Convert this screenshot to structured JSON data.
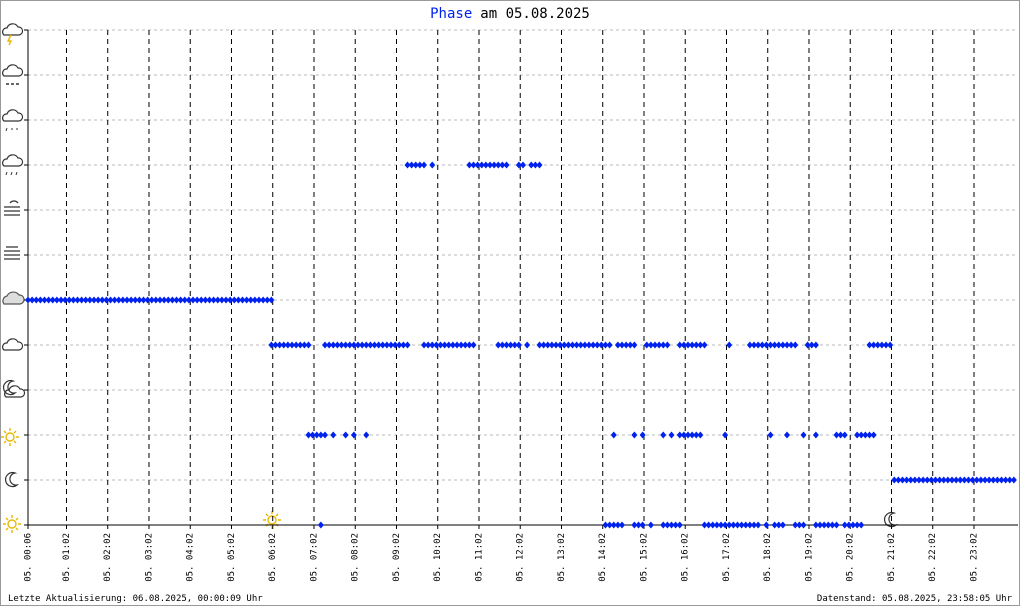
{
  "chart_data": {
    "type": "scatter",
    "title_highlight": "Phase",
    "title": "am 05.08.2025",
    "footer_left": "Letzte Aktualisierung: 06.08.2025, 00:00:09 Uhr",
    "footer_right": "Datenstand: 05.08.2025, 23:58:05 Uhr",
    "color": "#0022ee",
    "grid": true,
    "xlim": [
      0.1,
      24.1
    ],
    "ylim": [
      0,
      11
    ],
    "yticks": [
      0,
      1,
      2,
      3,
      4,
      5,
      6,
      7,
      8,
      9,
      10,
      11
    ],
    "xticks": [
      {
        "value": 0.1,
        "label": "05. 00:06"
      },
      {
        "value": 1.033,
        "label": "05. 01:02"
      },
      {
        "value": 2.033,
        "label": "05. 02:02"
      },
      {
        "value": 3.033,
        "label": "05. 03:02"
      },
      {
        "value": 4.033,
        "label": "05. 04:02"
      },
      {
        "value": 5.033,
        "label": "05. 05:02"
      },
      {
        "value": 6.033,
        "label": "05. 06:02"
      },
      {
        "value": 7.033,
        "label": "05. 07:02"
      },
      {
        "value": 8.033,
        "label": "05. 08:02"
      },
      {
        "value": 9.033,
        "label": "05. 09:02"
      },
      {
        "value": 10.033,
        "label": "05. 10:02"
      },
      {
        "value": 11.033,
        "label": "05. 11:02"
      },
      {
        "value": 12.033,
        "label": "05. 12:02"
      },
      {
        "value": 13.033,
        "label": "05. 13:02"
      },
      {
        "value": 14.033,
        "label": "05. 14:02"
      },
      {
        "value": 15.033,
        "label": "05. 15:02"
      },
      {
        "value": 16.033,
        "label": "05. 16:02"
      },
      {
        "value": 17.033,
        "label": "05. 17:02"
      },
      {
        "value": 18.033,
        "label": "05. 18:02"
      },
      {
        "value": 19.033,
        "label": "05. 19:02"
      },
      {
        "value": 20.033,
        "label": "05. 20:02"
      },
      {
        "value": 21.033,
        "label": "05. 21:02"
      },
      {
        "value": 22.033,
        "label": "05. 22:02"
      },
      {
        "value": 23.033,
        "label": "05. 23:02"
      }
    ],
    "series": [
      {
        "y": 5,
        "x": [
          0.1,
          0.2,
          0.3,
          0.4,
          0.5,
          0.6,
          0.7,
          0.8,
          0.9,
          1.0,
          1.1,
          1.2,
          1.3,
          1.4,
          1.5,
          1.6,
          1.7,
          1.8,
          1.9,
          2.0,
          2.1,
          2.2,
          2.3,
          2.4,
          2.5,
          2.6,
          2.7,
          2.8,
          2.9,
          3.0,
          3.1,
          3.2,
          3.3,
          3.4,
          3.5,
          3.6,
          3.7,
          3.8,
          3.9,
          4.0,
          4.1,
          4.2,
          4.3,
          4.4,
          4.5,
          4.6,
          4.7,
          4.8,
          4.9,
          5.0,
          5.1,
          5.2,
          5.3,
          5.4,
          5.5,
          5.6,
          5.7,
          5.8,
          5.9,
          6.0
        ]
      },
      {
        "y": 4,
        "x": [
          6.0,
          6.1,
          6.2,
          6.3,
          6.4,
          6.5,
          6.6,
          6.7,
          6.8,
          6.9,
          7.3,
          7.4,
          7.5,
          7.6,
          7.7,
          7.8,
          7.9,
          8.0,
          8.1,
          8.2,
          8.3,
          8.4,
          8.5,
          8.6,
          8.7,
          8.8,
          8.9,
          9.0,
          9.1,
          9.2,
          9.3,
          9.7,
          9.8,
          9.9,
          10.0,
          10.1,
          10.2,
          10.3,
          10.4,
          10.5,
          10.6,
          10.7,
          10.8,
          10.9,
          11.5,
          11.6,
          11.7,
          11.8,
          11.9,
          12.0,
          12.2,
          12.5,
          12.6,
          12.7,
          12.8,
          12.9,
          13.0,
          13.1,
          13.2,
          13.3,
          13.4,
          13.5,
          13.6,
          13.7,
          13.8,
          13.9,
          14.0,
          14.1,
          14.2,
          14.4,
          14.5,
          14.6,
          14.7,
          14.8,
          15.1,
          15.2,
          15.3,
          15.4,
          15.5,
          15.6,
          15.9,
          16.0,
          16.1,
          16.2,
          16.3,
          16.4,
          16.5,
          17.1,
          17.6,
          17.7,
          17.8,
          17.9,
          18.0,
          18.1,
          18.2,
          18.3,
          18.4,
          18.5,
          18.6,
          18.7,
          19.0,
          19.1,
          19.2,
          20.5,
          20.6,
          20.7,
          20.8,
          20.9,
          21.0
        ]
      },
      {
        "y": 8,
        "x": [
          9.3,
          9.4,
          9.5,
          9.6,
          9.7,
          9.9,
          10.8,
          10.9,
          11.0,
          11.1,
          11.2,
          11.3,
          11.4,
          11.5,
          11.6,
          11.7,
          12.0,
          12.1,
          12.3,
          12.4,
          12.5
        ]
      },
      {
        "y": 2,
        "x": [
          6.9,
          7.0,
          7.1,
          7.2,
          7.3,
          7.5,
          7.8,
          8.0,
          8.3,
          14.3,
          14.8,
          15.0,
          15.5,
          15.7,
          15.9,
          16.0,
          16.1,
          16.2,
          16.3,
          16.4,
          17.0,
          18.1,
          18.5,
          18.9,
          19.2,
          19.7,
          19.8,
          19.9,
          20.2,
          20.3,
          20.4,
          20.5,
          20.6
        ]
      },
      {
        "y": 0,
        "x": [
          7.2,
          14.1,
          14.2,
          14.3,
          14.4,
          14.5,
          14.8,
          14.9,
          15.0,
          15.2,
          15.5,
          15.6,
          15.7,
          15.8,
          15.9,
          16.5,
          16.6,
          16.7,
          16.8,
          16.9,
          17.0,
          17.1,
          17.2,
          17.3,
          17.4,
          17.5,
          17.6,
          17.7,
          17.8,
          18.0,
          18.2,
          18.3,
          18.4,
          18.7,
          18.8,
          18.9,
          19.2,
          19.3,
          19.4,
          19.5,
          19.6,
          19.7,
          19.9,
          20.0,
          20.1,
          20.2,
          20.3
        ]
      },
      {
        "y": 1,
        "x": [
          21.1,
          21.2,
          21.3,
          21.4,
          21.5,
          21.6,
          21.7,
          21.8,
          21.9,
          22.0,
          22.1,
          22.2,
          22.3,
          22.4,
          22.5,
          22.6,
          22.7,
          22.8,
          22.9,
          23.0,
          23.1,
          23.2,
          23.3,
          23.4,
          23.5,
          23.6,
          23.7,
          23.8,
          23.9,
          24.0
        ]
      }
    ]
  }
}
